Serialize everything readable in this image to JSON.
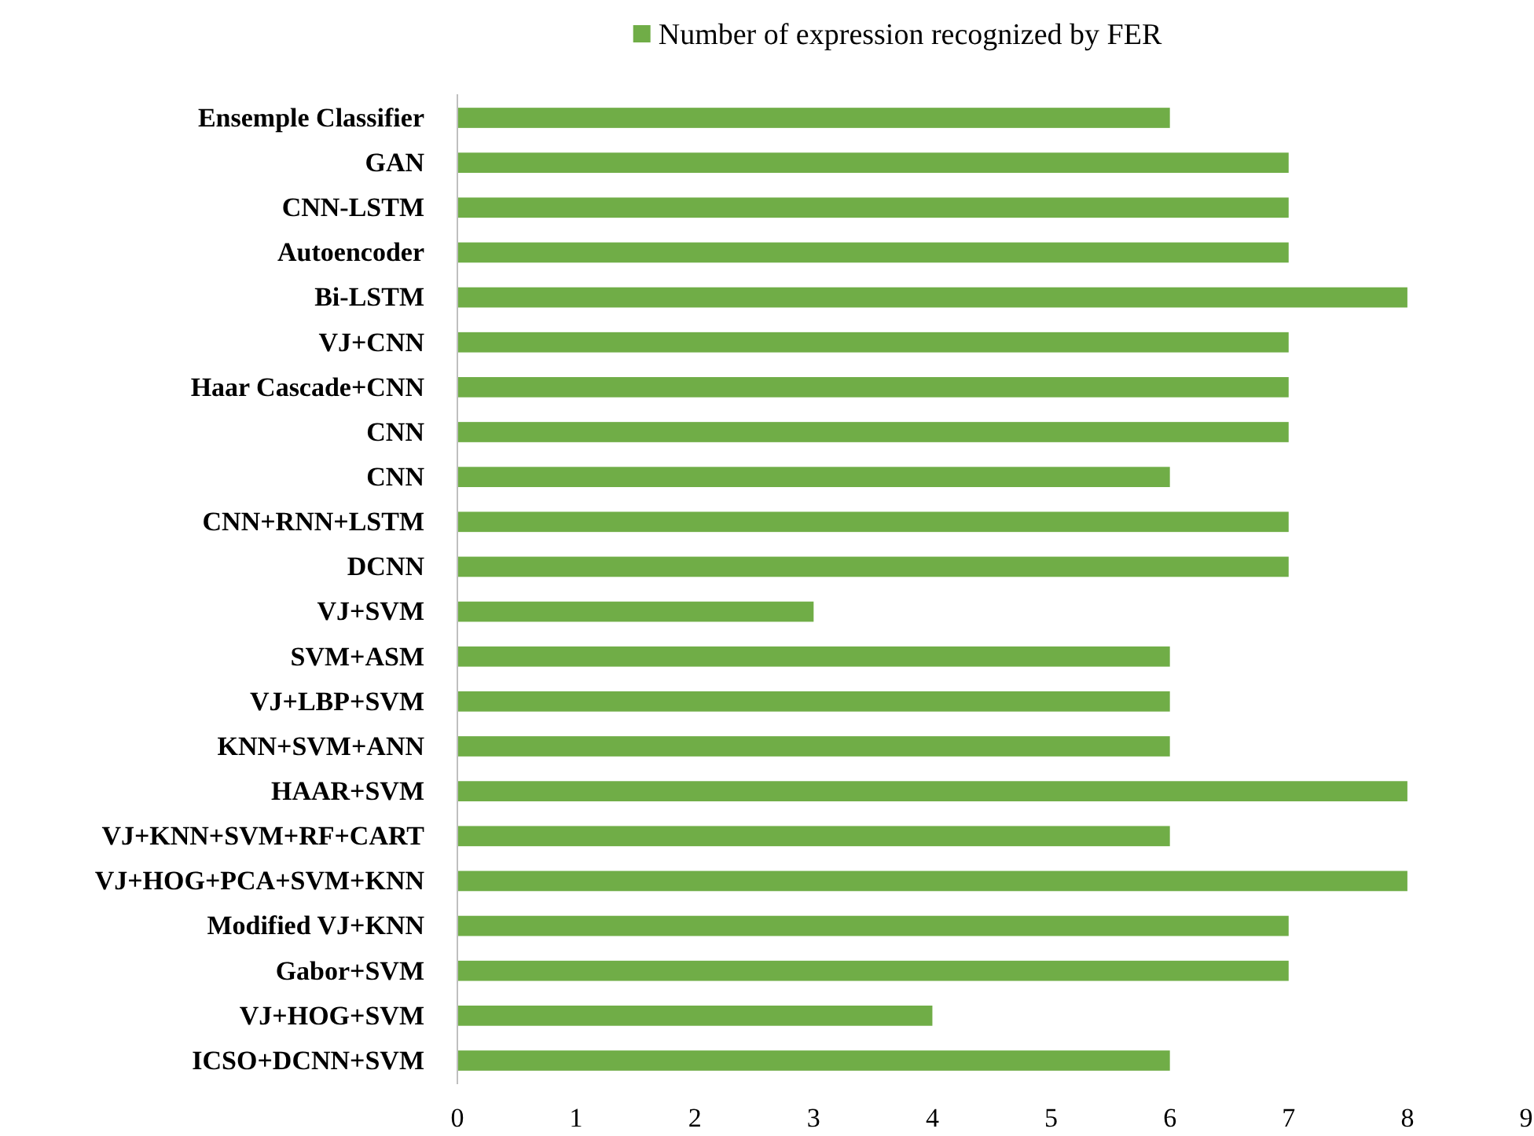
{
  "chart_data": {
    "type": "bar",
    "orientation": "horizontal",
    "categories": [
      "Ensemple Classifier",
      "GAN",
      "CNN-LSTM",
      "Autoencoder",
      "Bi-LSTM",
      "VJ+CNN",
      "Haar Cascade+CNN",
      "CNN",
      "CNN",
      "CNN+RNN+LSTM",
      "DCNN",
      "VJ+SVM",
      "SVM+ASM",
      "VJ+LBP+SVM",
      "KNN+SVM+ANN",
      "HAAR+SVM",
      "VJ+KNN+SVM+RF+CART",
      "VJ+HOG+PCA+SVM+KNN",
      "Modified VJ+KNN",
      "Gabor+SVM",
      "VJ+HOG+SVM",
      "ICSO+DCNN+SVM"
    ],
    "series": [
      {
        "name": "Number of expression recognized by FER",
        "color": "#70ad47",
        "values": [
          6,
          7,
          7,
          7,
          8,
          7,
          7,
          7,
          6,
          7,
          7,
          3,
          6,
          6,
          6,
          8,
          6,
          8,
          7,
          7,
          4,
          6
        ]
      }
    ],
    "xlim": [
      0,
      9
    ],
    "xticks": [
      0,
      1,
      2,
      3,
      4,
      5,
      6,
      7,
      8,
      9
    ],
    "grid": false,
    "legend": "top"
  }
}
